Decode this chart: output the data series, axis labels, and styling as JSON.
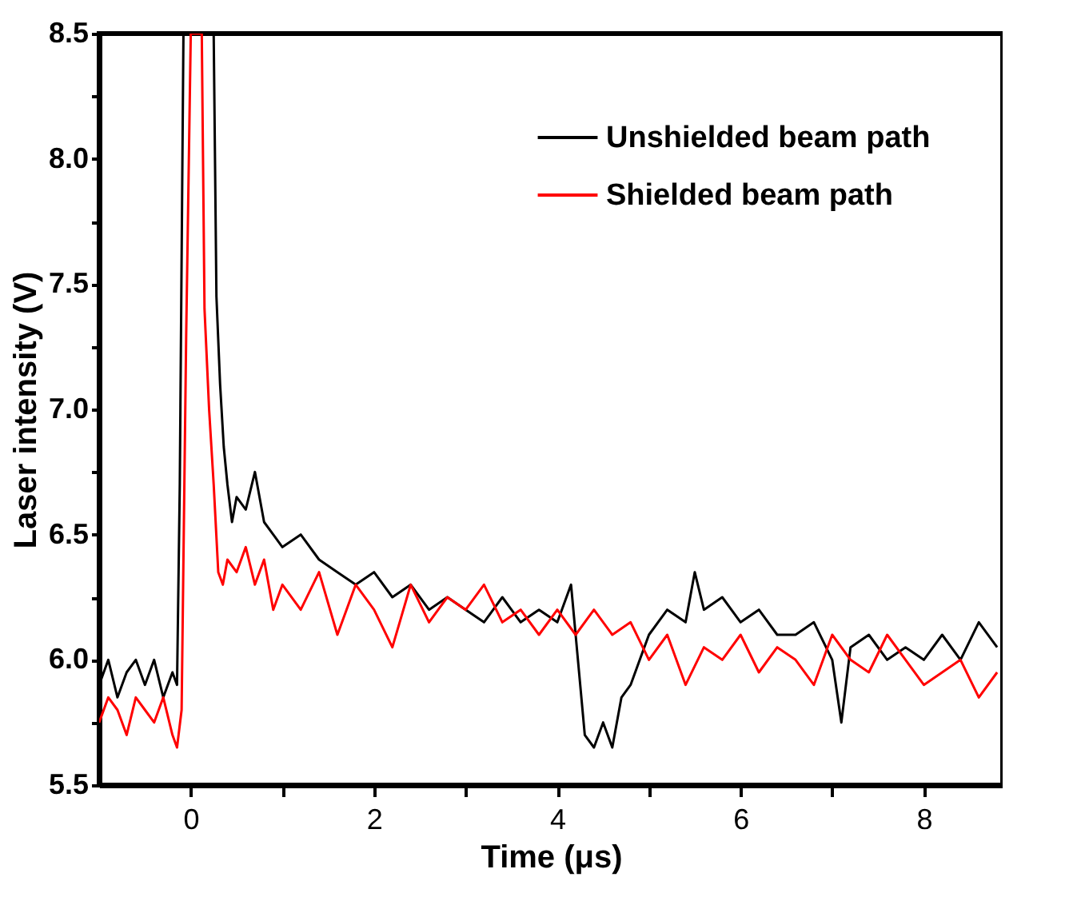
{
  "chart_data": {
    "type": "line",
    "xlabel": "Time (μs)",
    "ylabel": "Laser intensity (V)",
    "xlim": [
      -1.0,
      8.86
    ],
    "ylim": [
      5.5,
      8.5
    ],
    "xticks": [
      0,
      {
        "value": 1,
        "label": null
      },
      2,
      {
        "value": 3,
        "label": null
      },
      4,
      {
        "value": 5,
        "label": null
      },
      6,
      {
        "value": 7,
        "label": null
      },
      8
    ],
    "yticks": [
      {
        "value": 5.5,
        "label": "5.5"
      },
      {
        "value": 5.75,
        "label": null
      },
      {
        "value": 6,
        "label": "6.0"
      },
      {
        "value": 6.25,
        "label": null
      },
      {
        "value": 6.5,
        "label": "6.5"
      },
      {
        "value": 6.75,
        "label": null
      },
      {
        "value": 7,
        "label": "7.0"
      },
      {
        "value": 7.25,
        "label": null
      },
      {
        "value": 7.5,
        "label": "7.5"
      },
      {
        "value": 7.75,
        "label": null
      },
      {
        "value": 8,
        "label": "8.0"
      },
      {
        "value": 8.25,
        "label": null
      },
      {
        "value": 8.5,
        "label": "8.5"
      }
    ],
    "grid": false,
    "legend": "top right",
    "marker": "none",
    "line_style": "solid",
    "series": [
      {
        "name": "Unshielded beam path",
        "color": "#000000",
        "x": [
          -1.0,
          -0.9,
          -0.8,
          -0.7,
          -0.6,
          -0.5,
          -0.4,
          -0.3,
          -0.2,
          -0.15,
          -0.12,
          -0.08,
          0.0,
          0.1,
          0.2,
          0.25,
          0.28,
          0.32,
          0.36,
          0.4,
          0.45,
          0.5,
          0.6,
          0.7,
          0.8,
          0.9,
          1.0,
          1.2,
          1.4,
          1.6,
          1.8,
          2.0,
          2.2,
          2.4,
          2.6,
          2.8,
          3.0,
          3.2,
          3.4,
          3.6,
          3.8,
          4.0,
          4.15,
          4.25,
          4.3,
          4.4,
          4.5,
          4.6,
          4.7,
          4.8,
          4.9,
          5.0,
          5.2,
          5.4,
          5.5,
          5.6,
          5.8,
          6.0,
          6.2,
          6.4,
          6.6,
          6.8,
          7.0,
          7.1,
          7.2,
          7.4,
          7.6,
          7.8,
          8.0,
          8.2,
          8.4,
          8.6,
          8.8
        ],
        "values": [
          5.9,
          6.0,
          5.85,
          5.95,
          6.0,
          5.9,
          6.0,
          5.85,
          5.95,
          5.9,
          6.7,
          8.5,
          8.5,
          8.5,
          8.5,
          8.5,
          7.45,
          7.1,
          6.85,
          6.7,
          6.55,
          6.65,
          6.6,
          6.75,
          6.55,
          6.5,
          6.45,
          6.5,
          6.4,
          6.35,
          6.3,
          6.35,
          6.25,
          6.3,
          6.2,
          6.25,
          6.2,
          6.15,
          6.25,
          6.15,
          6.2,
          6.15,
          6.3,
          5.9,
          5.7,
          5.65,
          5.75,
          5.65,
          5.85,
          5.9,
          6.0,
          6.1,
          6.2,
          6.15,
          6.35,
          6.2,
          6.25,
          6.15,
          6.2,
          6.1,
          6.1,
          6.15,
          6.0,
          5.75,
          6.05,
          6.1,
          6.0,
          6.05,
          6.0,
          6.1,
          6.0,
          6.15,
          6.05
        ]
      },
      {
        "name": "Shielded beam path",
        "color": "#ff0000",
        "x": [
          -1.0,
          -0.9,
          -0.8,
          -0.7,
          -0.6,
          -0.5,
          -0.4,
          -0.3,
          -0.2,
          -0.15,
          -0.1,
          -0.05,
          0.0,
          0.05,
          0.12,
          0.15,
          0.2,
          0.25,
          0.3,
          0.35,
          0.4,
          0.5,
          0.6,
          0.7,
          0.8,
          0.9,
          1.0,
          1.2,
          1.4,
          1.6,
          1.8,
          2.0,
          2.2,
          2.4,
          2.6,
          2.8,
          3.0,
          3.2,
          3.4,
          3.6,
          3.8,
          4.0,
          4.2,
          4.4,
          4.6,
          4.8,
          5.0,
          5.2,
          5.4,
          5.6,
          5.8,
          6.0,
          6.2,
          6.4,
          6.6,
          6.8,
          7.0,
          7.2,
          7.4,
          7.6,
          7.8,
          8.0,
          8.2,
          8.4,
          8.6,
          8.8
        ],
        "values": [
          5.75,
          5.85,
          5.8,
          5.7,
          5.85,
          5.8,
          5.75,
          5.85,
          5.7,
          5.65,
          5.8,
          7.3,
          8.5,
          8.5,
          8.5,
          7.4,
          7.0,
          6.7,
          6.35,
          6.3,
          6.4,
          6.35,
          6.45,
          6.3,
          6.4,
          6.2,
          6.3,
          6.2,
          6.35,
          6.1,
          6.3,
          6.2,
          6.05,
          6.3,
          6.15,
          6.25,
          6.2,
          6.3,
          6.15,
          6.2,
          6.1,
          6.2,
          6.1,
          6.2,
          6.1,
          6.15,
          6.0,
          6.1,
          5.9,
          6.05,
          6.0,
          6.1,
          5.95,
          6.05,
          6.0,
          5.9,
          6.1,
          6.0,
          5.95,
          6.1,
          6.0,
          5.9,
          5.95,
          6.0,
          5.85,
          5.95
        ]
      }
    ]
  }
}
